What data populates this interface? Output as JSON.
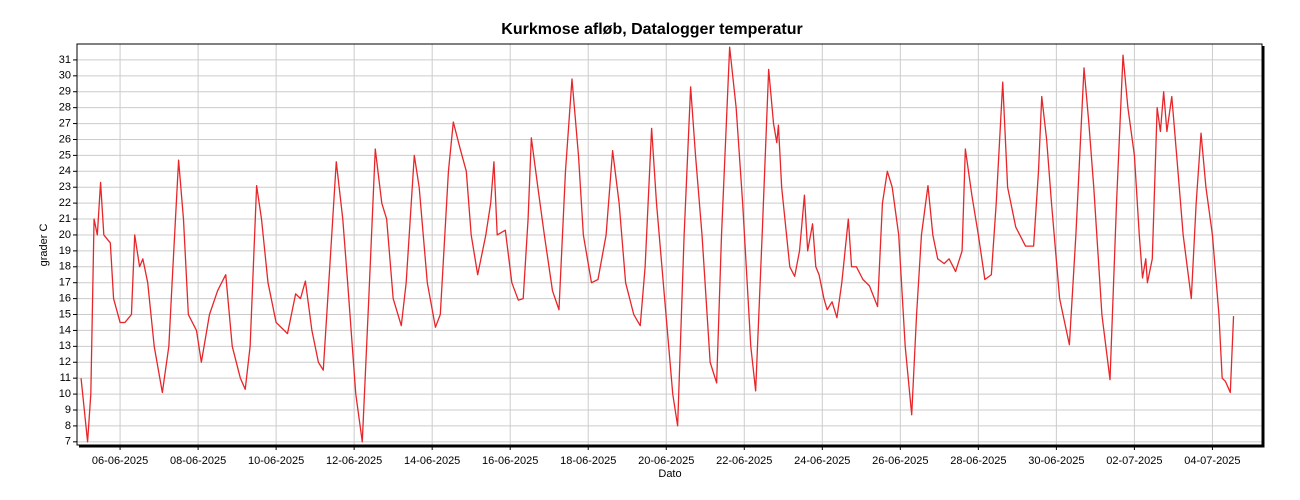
{
  "chart_data": {
    "type": "line",
    "title": "Kurkmose afløb, Datalogger temperatur",
    "xlabel": "Dato",
    "ylabel": "grader C",
    "color": "#e8262a",
    "grid": true,
    "xlim": [
      "2025-06-04T21:30",
      "2025-07-05T06:30"
    ],
    "ylim": [
      6.8,
      32
    ],
    "yticks": [
      7,
      8,
      9,
      10,
      11,
      12,
      13,
      14,
      15,
      16,
      17,
      18,
      19,
      20,
      21,
      22,
      23,
      24,
      25,
      26,
      27,
      28,
      29,
      30,
      31
    ],
    "xticks": [
      {
        "value": "2025-06-06T00:00",
        "label": "06-06-2025"
      },
      {
        "value": "2025-06-08T00:00",
        "label": "08-06-2025"
      },
      {
        "value": "2025-06-10T00:00",
        "label": "10-06-2025"
      },
      {
        "value": "2025-06-12T00:00",
        "label": "12-06-2025"
      },
      {
        "value": "2025-06-14T00:00",
        "label": "14-06-2025"
      },
      {
        "value": "2025-06-16T00:00",
        "label": "16-06-2025"
      },
      {
        "value": "2025-06-18T00:00",
        "label": "18-06-2025"
      },
      {
        "value": "2025-06-20T00:00",
        "label": "20-06-2025"
      },
      {
        "value": "2025-06-22T00:00",
        "label": "22-06-2025"
      },
      {
        "value": "2025-06-24T00:00",
        "label": "24-06-2025"
      },
      {
        "value": "2025-06-26T00:00",
        "label": "26-06-2025"
      },
      {
        "value": "2025-06-28T00:00",
        "label": "28-06-2025"
      },
      {
        "value": "2025-06-30T00:00",
        "label": "30-06-2025"
      },
      {
        "value": "2025-07-02T00:00",
        "label": "02-07-2025"
      },
      {
        "value": "2025-07-04T00:00",
        "label": "04-07-2025"
      }
    ],
    "x": [
      "2025-06-05T00:00",
      "2025-06-05T04:00",
      "2025-06-05T06:00",
      "2025-06-05T08:00",
      "2025-06-05T10:00",
      "2025-06-05T12:00",
      "2025-06-05T14:00",
      "2025-06-05T18:00",
      "2025-06-05T20:00",
      "2025-06-06T00:00",
      "2025-06-06T03:00",
      "2025-06-06T07:00",
      "2025-06-06T09:00",
      "2025-06-06T12:00",
      "2025-06-06T14:00",
      "2025-06-06T17:00",
      "2025-06-06T21:00",
      "2025-06-07T02:00",
      "2025-06-07T06:00",
      "2025-06-07T08:00",
      "2025-06-07T12:00",
      "2025-06-07T15:00",
      "2025-06-07T18:00",
      "2025-06-07T23:00",
      "2025-06-08T02:00",
      "2025-06-08T07:00",
      "2025-06-08T12:00",
      "2025-06-08T17:00",
      "2025-06-08T21:00",
      "2025-06-09T02:00",
      "2025-06-09T05:00",
      "2025-06-09T08:00",
      "2025-06-09T12:00",
      "2025-06-09T15:00",
      "2025-06-09T19:00",
      "2025-06-10T00:00",
      "2025-06-10T07:00",
      "2025-06-10T12:00",
      "2025-06-10T15:00",
      "2025-06-10T18:00",
      "2025-06-10T22:00",
      "2025-06-11T02:00",
      "2025-06-11T05:00",
      "2025-06-11T09:00",
      "2025-06-11T13:00",
      "2025-06-11T17:00",
      "2025-06-11T20:00",
      "2025-06-12T01:00",
      "2025-06-12T05:00",
      "2025-06-12T09:00",
      "2025-06-12T13:00",
      "2025-06-12T17:00",
      "2025-06-12T20:00",
      "2025-06-13T00:00",
      "2025-06-13T05:00",
      "2025-06-13T08:00",
      "2025-06-13T13:00",
      "2025-06-13T16:00",
      "2025-06-13T21:00",
      "2025-06-14T02:00",
      "2025-06-14T05:00",
      "2025-06-14T10:00",
      "2025-06-14T13:00",
      "2025-06-14T17:00",
      "2025-06-14T21:00",
      "2025-06-15T00:00",
      "2025-06-15T04:00",
      "2025-06-15T09:00",
      "2025-06-15T12:00",
      "2025-06-15T14:00",
      "2025-06-15T16:00",
      "2025-06-15T21:00",
      "2025-06-16T01:00",
      "2025-06-16T05:00",
      "2025-06-16T08:00",
      "2025-06-16T11:00",
      "2025-06-16T13:00",
      "2025-06-16T17:00",
      "2025-06-16T21:00",
      "2025-06-17T02:00",
      "2025-06-17T06:00",
      "2025-06-17T10:00",
      "2025-06-17T14:00",
      "2025-06-17T18:00",
      "2025-06-17T21:00",
      "2025-06-18T02:00",
      "2025-06-18T06:00",
      "2025-06-18T11:00",
      "2025-06-18T15:00",
      "2025-06-18T19:00",
      "2025-06-18T23:00",
      "2025-06-19T04:00",
      "2025-06-19T08:00",
      "2025-06-19T11:00",
      "2025-06-19T15:00",
      "2025-06-19T18:00",
      "2025-06-19T23:00",
      "2025-06-20T04:00",
      "2025-06-20T07:00",
      "2025-06-20T11:00",
      "2025-06-20T15:00",
      "2025-06-20T18:00",
      "2025-06-20T22:00",
      "2025-06-21T03:00",
      "2025-06-21T07:00",
      "2025-06-21T10:00",
      "2025-06-21T15:00",
      "2025-06-21T19:00",
      "2025-06-21T23:00",
      "2025-06-22T04:00",
      "2025-06-22T07:00",
      "2025-06-22T11:00",
      "2025-06-22T15:00",
      "2025-06-22T18:00",
      "2025-06-22T20:00",
      "2025-06-22T21:00",
      "2025-06-22T23:00",
      "2025-06-23T04:00",
      "2025-06-23T07:00",
      "2025-06-23T10:00",
      "2025-06-23T13:00",
      "2025-06-23T15:00",
      "2025-06-23T18:00",
      "2025-06-23T20:00",
      "2025-06-23T22:00",
      "2025-06-24T01:00",
      "2025-06-24T03:00",
      "2025-06-24T06:00",
      "2025-06-24T09:00",
      "2025-06-24T12:00",
      "2025-06-24T14:00",
      "2025-06-24T16:00",
      "2025-06-24T18:00",
      "2025-06-24T21:00",
      "2025-06-25T01:00",
      "2025-06-25T05:00",
      "2025-06-25T10:00",
      "2025-06-25T13:00",
      "2025-06-25T16:00",
      "2025-06-25T19:00",
      "2025-06-25T23:00",
      "2025-06-26T03:00",
      "2025-06-26T07:00",
      "2025-06-26T10:00",
      "2025-06-26T13:00",
      "2025-06-26T17:00",
      "2025-06-26T20:00",
      "2025-06-26T23:00",
      "2025-06-27T03:00",
      "2025-06-27T06:00",
      "2025-06-27T10:00",
      "2025-06-27T14:00",
      "2025-06-27T16:00",
      "2025-06-27T20:00",
      "2025-06-28T00:00",
      "2025-06-28T04:00",
      "2025-06-28T08:00",
      "2025-06-28T11:00",
      "2025-06-28T15:00",
      "2025-06-28T18:00",
      "2025-06-28T23:00",
      "2025-06-29T05:00",
      "2025-06-29T10:00",
      "2025-06-29T13:00",
      "2025-06-29T15:00",
      "2025-06-29T18:00",
      "2025-06-29T21:00",
      "2025-06-30T02:00",
      "2025-06-30T08:00",
      "2025-06-30T12:00",
      "2025-06-30T17:00",
      "2025-06-30T20:00",
      "2025-06-30T23:00",
      "2025-07-01T04:00",
      "2025-07-01T09:00",
      "2025-07-01T13:00",
      "2025-07-01T17:00",
      "2025-07-01T20:00",
      "2025-07-02T00:00",
      "2025-07-02T03:00",
      "2025-07-02T05:00",
      "2025-07-02T07:00",
      "2025-07-02T08:00",
      "2025-07-02T11:00",
      "2025-07-02T14:00",
      "2025-07-02T16:00",
      "2025-07-02T18:00",
      "2025-07-02T20:00",
      "2025-07-02T23:00",
      "2025-07-03T02:00",
      "2025-07-03T06:00",
      "2025-07-03T11:00",
      "2025-07-03T14:00",
      "2025-07-03T17:00",
      "2025-07-03T20:00",
      "2025-07-04T00:00",
      "2025-07-04T04:00",
      "2025-07-04T06:00",
      "2025-07-04T08:00",
      "2025-07-04T11:00",
      "2025-07-04T13:00"
    ],
    "values": [
      11,
      7,
      10,
      21,
      20,
      23.3,
      20,
      19.5,
      16,
      14.5,
      14.5,
      15,
      20,
      18,
      18.5,
      17,
      13,
      10.1,
      13,
      17,
      24.7,
      21,
      15,
      14,
      12,
      15,
      16.5,
      17.5,
      13,
      11,
      10.3,
      13,
      23.1,
      21,
      17,
      14.5,
      13.8,
      16.3,
      16,
      17.1,
      14,
      12,
      11.5,
      18,
      24.6,
      21,
      17,
      10,
      7,
      16,
      25.4,
      22,
      21,
      16,
      14.3,
      17,
      25,
      23,
      17,
      14.2,
      15,
      24,
      27.1,
      25.5,
      24,
      20,
      17.5,
      20,
      22,
      24.6,
      20,
      20.3,
      17,
      15.9,
      16,
      21,
      26.1,
      23,
      20,
      16.5,
      15.3,
      24,
      29.8,
      25,
      20,
      17,
      17.2,
      20,
      25.3,
      22,
      17,
      15,
      14.3,
      18,
      26.7,
      22,
      16,
      10,
      8,
      20,
      29.3,
      25,
      20,
      12,
      10.7,
      20,
      31.8,
      28,
      22,
      13,
      10.2,
      20,
      30.4,
      27,
      25.8,
      26.9,
      23,
      18,
      17.4,
      19,
      22.5,
      19,
      20.7,
      18,
      17.5,
      16,
      15.3,
      15.8,
      14.8,
      17,
      19,
      21,
      18,
      18,
      17.2,
      16.8,
      15.5,
      22,
      24,
      23,
      20,
      13,
      8.7,
      15,
      20,
      23.1,
      20,
      18.5,
      18.2,
      18.5,
      17.7,
      19,
      25.4,
      22.5,
      20,
      17.2,
      17.5,
      22,
      29.6,
      23,
      20.5,
      19.3,
      19.3,
      24,
      28.7,
      26,
      22,
      16,
      13.1,
      20,
      30.5,
      27,
      23,
      15,
      10.9,
      22,
      31.3,
      28,
      25,
      20,
      17.3,
      18.5,
      17,
      18.5,
      28,
      26.5,
      29,
      26.5,
      28.7,
      25,
      20,
      16,
      22,
      26.4,
      23,
      20,
      15,
      11,
      10.8,
      10.1,
      14.9
    ]
  }
}
